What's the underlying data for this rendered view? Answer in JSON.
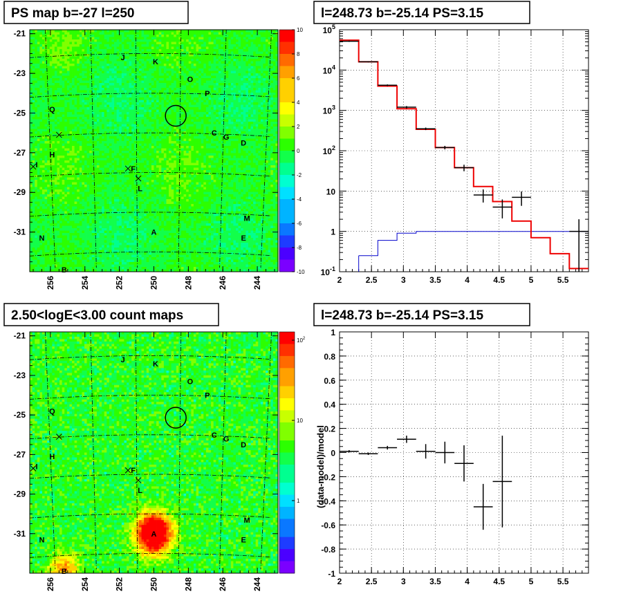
{
  "palette": [
    "#7b00ff",
    "#4b00ff",
    "#1e3cff",
    "#0a78ff",
    "#00b4ff",
    "#00e0ff",
    "#00ffd0",
    "#00ff90",
    "#12ff4a",
    "#2cff00",
    "#80ff00",
    "#c8ff00",
    "#ffff00",
    "#ffd000",
    "#ffa000",
    "#ff6a00",
    "#ff3000",
    "#ff0000"
  ],
  "chart_data": [
    {
      "type": "heatmap",
      "title": "PS map b=-27 l=250",
      "x_ticks": [
        "256",
        "254",
        "252",
        "250",
        "248",
        "246",
        "244"
      ],
      "y_ticks": [
        "-21",
        "-23",
        "-25",
        "-27",
        "-29",
        "-31"
      ],
      "xlim": [
        257.2,
        242.8
      ],
      "ylim": [
        -33,
        -20.8
      ],
      "zlim": [
        -10,
        10
      ],
      "z_ticks": [
        "10",
        "8",
        "6",
        "4",
        "2",
        "0",
        "-2",
        "-4",
        "-6",
        "-8",
        "-10"
      ],
      "circle": {
        "l": 248.73,
        "b": -25.14
      },
      "sources": [
        {
          "label": "J",
          "l": 251.8,
          "b": -22.2
        },
        {
          "label": "K",
          "l": 249.9,
          "b": -22.4
        },
        {
          "label": "O",
          "l": 247.9,
          "b": -23.3
        },
        {
          "label": "P",
          "l": 246.9,
          "b": -24.0
        },
        {
          "label": "Q",
          "l": 255.9,
          "b": -24.8
        },
        {
          "label": "C",
          "l": 246.5,
          "b": -26.0
        },
        {
          "label": "G",
          "l": 245.8,
          "b": -26.2
        },
        {
          "label": "D",
          "l": 244.8,
          "b": -26.5
        },
        {
          "label": "H",
          "l": 255.9,
          "b": -27.1
        },
        {
          "label": "I",
          "l": 256.8,
          "b": -27.6
        },
        {
          "label": "F",
          "l": 251.2,
          "b": -27.8
        },
        {
          "label": "L",
          "l": 250.8,
          "b": -28.8
        },
        {
          "label": "M",
          "l": 244.6,
          "b": -30.3
        },
        {
          "label": "A",
          "l": 250.0,
          "b": -31.0
        },
        {
          "label": "N",
          "l": 256.5,
          "b": -31.3
        },
        {
          "label": "E",
          "l": 244.8,
          "b": -31.3
        },
        {
          "label": "B",
          "l": 255.2,
          "b": -32.9
        }
      ],
      "crosses": [
        {
          "l": 255.5,
          "b": -26.1
        },
        {
          "l": 257.0,
          "b": -27.7
        },
        {
          "l": 251.5,
          "b": -27.8
        },
        {
          "l": 250.9,
          "b": -28.3
        }
      ]
    },
    {
      "type": "line",
      "title": "l=248.73 b=-25.14 PS=3.15",
      "xlim": [
        2,
        5.9
      ],
      "ylim": [
        0.1,
        100000
      ],
      "log_y": true,
      "grid": true,
      "x_ticks": [
        "2",
        "2.5",
        "3",
        "3.5",
        "4",
        "4.5",
        "5",
        "5.5"
      ],
      "y_tick_values": [
        0.1,
        1,
        10,
        100,
        1000,
        10000,
        100000
      ],
      "y_ticks": [
        "10",
        "1",
        "10",
        "10",
        "10",
        "10",
        "10"
      ],
      "y_tick_exps": [
        "-1",
        "",
        "",
        "2",
        "3",
        "4",
        "5"
      ],
      "model_total": {
        "edges": [
          2,
          2.3,
          2.6,
          2.9,
          3.2,
          3.5,
          3.8,
          4.1,
          4.4,
          4.7,
          5.0,
          5.3,
          5.6,
          5.9
        ],
        "values": [
          55000,
          16000,
          4000,
          1100,
          340,
          120,
          38,
          13,
          5.5,
          1.8,
          0.7,
          0.28,
          0.12
        ]
      },
      "model_ps": {
        "edges": [
          2.3,
          2.6,
          2.9,
          3.2,
          3.5,
          3.8,
          4.1,
          4.4,
          4.7,
          5.0,
          5.3,
          5.6,
          5.9
        ],
        "values": [
          0.25,
          0.6,
          0.9,
          1.0,
          1.0,
          1.0,
          1.0,
          1.0,
          1.0,
          1.0,
          1.0,
          1.0
        ]
      },
      "data_points": [
        {
          "x": 2.15,
          "y": 52000,
          "xerr": 0.15,
          "lo": 50000,
          "hi": 54000
        },
        {
          "x": 2.45,
          "y": 16000,
          "xerr": 0.15,
          "lo": 15500,
          "hi": 16500
        },
        {
          "x": 2.75,
          "y": 4200,
          "xerr": 0.15,
          "lo": 4000,
          "hi": 4400
        },
        {
          "x": 3.05,
          "y": 1200,
          "xerr": 0.15,
          "lo": 1120,
          "hi": 1280
        },
        {
          "x": 3.35,
          "y": 350,
          "xerr": 0.15,
          "lo": 325,
          "hi": 375
        },
        {
          "x": 3.65,
          "y": 120,
          "xerr": 0.15,
          "lo": 108,
          "hi": 132
        },
        {
          "x": 3.95,
          "y": 38,
          "xerr": 0.15,
          "lo": 31,
          "hi": 45
        },
        {
          "x": 4.25,
          "y": 8,
          "xerr": 0.15,
          "lo": 5.2,
          "hi": 11
        },
        {
          "x": 4.55,
          "y": 4,
          "xerr": 0.15,
          "lo": 2.1,
          "hi": 6.2
        },
        {
          "x": 4.85,
          "y": 7,
          "xerr": 0.15,
          "lo": 4.3,
          "hi": 9.8
        },
        {
          "x": 5.75,
          "y": 1,
          "xerr": 0.15,
          "lo": 0.1,
          "hi": 2.0
        }
      ]
    },
    {
      "type": "heatmap",
      "title": "2.50<logE<3.00 count maps",
      "x_ticks": [
        "256",
        "254",
        "252",
        "250",
        "248",
        "246",
        "244"
      ],
      "y_ticks": [
        "-21",
        "-23",
        "-25",
        "-27",
        "-29",
        "-31"
      ],
      "xlim": [
        257.2,
        242.8
      ],
      "ylim": [
        -33,
        -20.8
      ],
      "log_z": true,
      "z_ticks": [
        "10",
        "10",
        "1"
      ],
      "z_tick_exps": [
        "2",
        "",
        ""
      ],
      "circle": {
        "l": 248.73,
        "b": -25.14
      },
      "bright": [
        {
          "l": 250.0,
          "b": -31.0,
          "amp": 14,
          "width": 0.7
        },
        {
          "l": 255.2,
          "b": -32.9,
          "amp": 6,
          "width": 0.6
        }
      ]
    },
    {
      "type": "scatter",
      "title": "l=248.73 b=-25.14 PS=3.15",
      "ylabel": "(data-model)/model",
      "xlim": [
        2,
        5.9
      ],
      "ylim": [
        -1,
        1
      ],
      "grid": true,
      "x_ticks": [
        "2",
        "2.5",
        "3",
        "3.5",
        "4",
        "4.5",
        "5",
        "5.5"
      ],
      "y_ticks": [
        "1",
        "0.8",
        "0.6",
        "0.4",
        "0.2",
        "0",
        "-0.2",
        "-0.4",
        "-0.6",
        "-0.8",
        "-1"
      ],
      "points": [
        {
          "x": 2.15,
          "y": 0.01,
          "xerr": 0.15,
          "yerr": 0.01
        },
        {
          "x": 2.45,
          "y": -0.01,
          "xerr": 0.15,
          "yerr": 0.01
        },
        {
          "x": 2.75,
          "y": 0.04,
          "xerr": 0.15,
          "yerr": 0.015
        },
        {
          "x": 3.05,
          "y": 0.11,
          "xerr": 0.15,
          "yerr": 0.03
        },
        {
          "x": 3.35,
          "y": 0.01,
          "xerr": 0.15,
          "yerr": 0.06
        },
        {
          "x": 3.65,
          "y": 0.0,
          "xerr": 0.15,
          "yerr": 0.09
        },
        {
          "x": 3.95,
          "y": -0.09,
          "xerr": 0.15,
          "yerr": 0.15
        },
        {
          "x": 4.25,
          "y": -0.45,
          "xerr": 0.15,
          "yerr": 0.19
        },
        {
          "x": 4.55,
          "y": -0.24,
          "xerr": 0.15,
          "yerr": 0.38
        }
      ]
    }
  ]
}
